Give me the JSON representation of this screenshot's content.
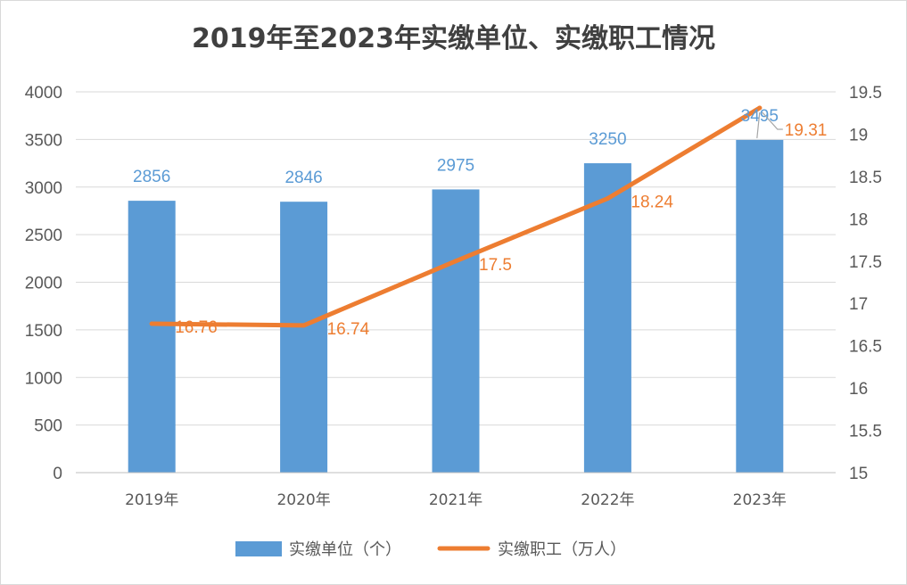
{
  "chart_data": {
    "type": "bar",
    "title": "2019年至2023年实缴单位、实缴职工情况",
    "categories": [
      "2019年",
      "2020年",
      "2021年",
      "2022年",
      "2023年"
    ],
    "series": [
      {
        "name": "实缴单位（个）",
        "type": "bar",
        "axis": "left",
        "values": [
          2856,
          2846,
          2975,
          3250,
          3495
        ],
        "color": "#5b9bd5"
      },
      {
        "name": "实缴职工（万人）",
        "type": "line",
        "axis": "right",
        "values": [
          16.76,
          16.74,
          17.5,
          18.24,
          19.31
        ],
        "color": "#ed7d31"
      }
    ],
    "y_left": {
      "range": [
        0,
        4000
      ],
      "ticks": [
        "0",
        "500",
        "1000",
        "1500",
        "2000",
        "2500",
        "3000",
        "3500",
        "4000"
      ]
    },
    "y_right": {
      "range": [
        15,
        19.5
      ],
      "ticks": [
        "15",
        "15.5",
        "16",
        "16.5",
        "17",
        "17.5",
        "18",
        "18.5",
        "19",
        "19.5"
      ]
    },
    "grid": true,
    "legend_position": "bottom"
  }
}
